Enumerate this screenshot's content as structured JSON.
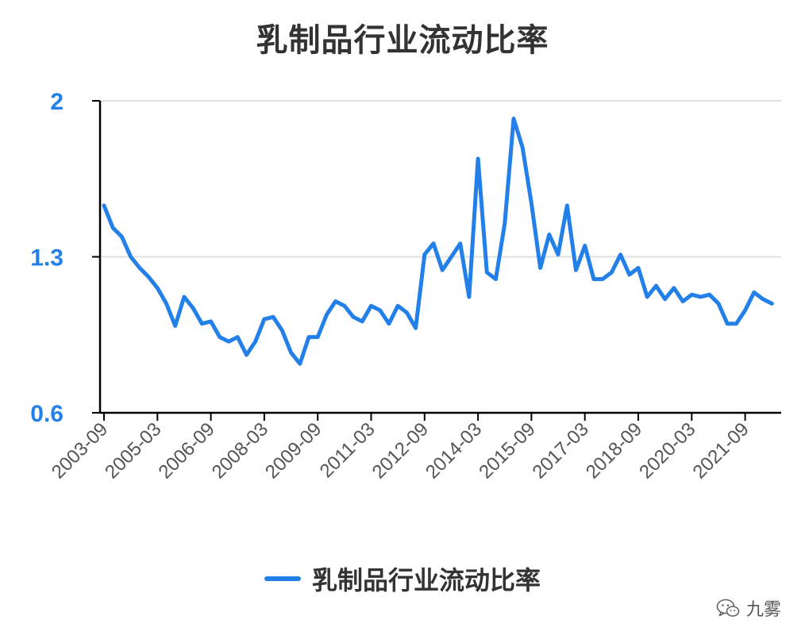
{
  "chart_data": {
    "type": "line",
    "title": "乳制品行业流动比率",
    "xlabel": "",
    "ylabel": "",
    "ylim": [
      0.6,
      2.0
    ],
    "y_ticks": [
      "0.6",
      "1.3",
      "2"
    ],
    "x_ticks": [
      "2003-09",
      "2005-03",
      "2006-09",
      "2008-03",
      "2009-09",
      "2011-03",
      "2012-09",
      "2014-03",
      "2015-09",
      "2017-03",
      "2018-09",
      "2020-03",
      "2021-09"
    ],
    "grid": "horizontal",
    "legend_position": "bottom",
    "colors": {
      "line": "#2280e8",
      "ytick": "#2280e8",
      "axis": "#000000",
      "grid": "#e0e0e0"
    },
    "series": [
      {
        "name": "乳制品行业流动比率",
        "values": [
          1.53,
          1.43,
          1.39,
          1.3,
          1.25,
          1.21,
          1.16,
          1.09,
          0.99,
          1.12,
          1.07,
          1.0,
          1.01,
          0.94,
          0.92,
          0.94,
          0.86,
          0.92,
          1.02,
          1.03,
          0.97,
          0.87,
          0.82,
          0.94,
          0.94,
          1.04,
          1.1,
          1.08,
          1.03,
          1.01,
          1.08,
          1.06,
          1.0,
          1.08,
          1.05,
          0.98,
          1.31,
          1.36,
          1.24,
          1.3,
          1.36,
          1.12,
          1.74,
          1.23,
          1.2,
          1.45,
          1.92,
          1.79,
          1.54,
          1.25,
          1.4,
          1.31,
          1.53,
          1.24,
          1.35,
          1.2,
          1.2,
          1.23,
          1.31,
          1.22,
          1.25,
          1.12,
          1.17,
          1.11,
          1.16,
          1.1,
          1.13,
          1.12,
          1.13,
          1.09,
          1.0,
          1.0,
          1.06,
          1.14,
          1.11,
          1.09
        ]
      }
    ]
  },
  "watermark": {
    "icon": "wechat-icon",
    "text": "九雾"
  }
}
